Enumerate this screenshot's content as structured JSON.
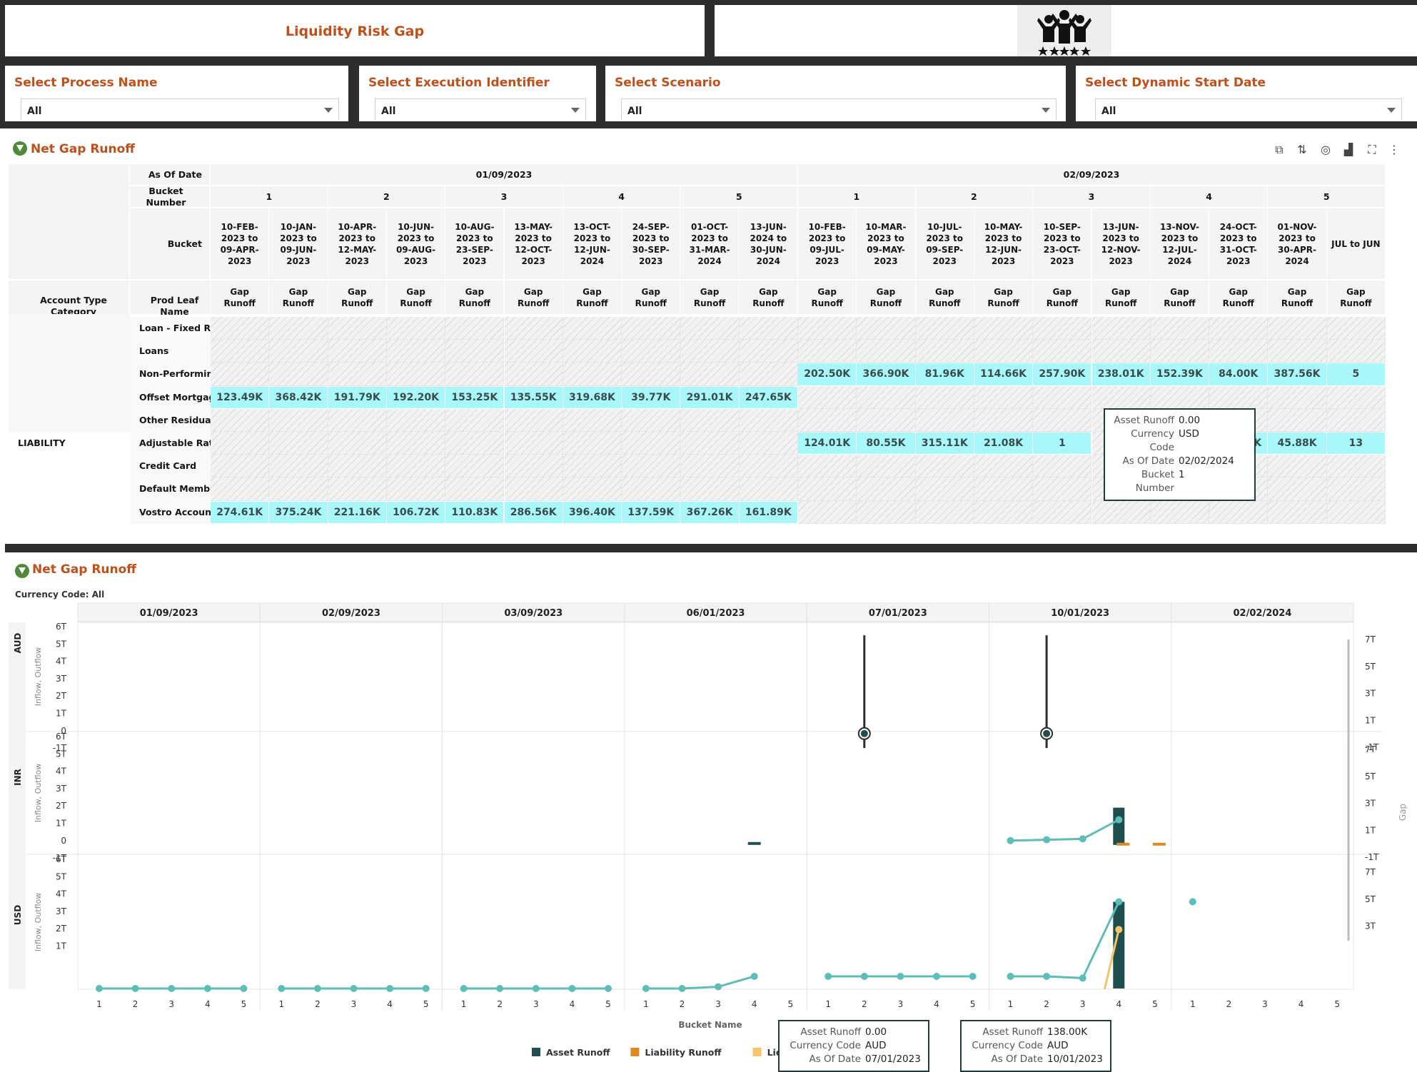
{
  "header": {
    "title": "Liquidity Risk Gap",
    "logo_icon": "people-celebration-icon"
  },
  "filters": [
    {
      "label": "Select Process Name",
      "value": "All"
    },
    {
      "label": "Select Execution Identifier",
      "value": "All"
    },
    {
      "label": "Select Scenario",
      "value": "All"
    },
    {
      "label": "Select Dynamic Start Date",
      "value": "All"
    }
  ],
  "table_section": {
    "title": "Net Gap Runoff",
    "toolbar_icons": [
      "pivot-icon",
      "sort-icon",
      "target-icon",
      "chart-type-icon",
      "fullscreen-icon",
      "more-icon"
    ],
    "row_headers": {
      "as_of_date": "As Of Date",
      "bucket_number": "Bucket Number",
      "bucket": "Bucket",
      "account_type_category": "Account Type Category",
      "prod_leaf_name": "Prod Leaf Name"
    },
    "dates": [
      {
        "label": "01/09/2023",
        "buckets": [
          "1",
          "2",
          "3",
          "4",
          "5"
        ]
      },
      {
        "label": "02/09/2023",
        "buckets": [
          "1",
          "2",
          "3",
          "4",
          "5"
        ]
      }
    ],
    "bucket_labels": [
      "10-FEB-2023 to 09-APR-2023",
      "10-JAN-2023 to 09-JUN-2023",
      "10-APR-2023 to 12-MAY-2023",
      "10-JUN-2023 to 09-AUG-2023",
      "10-AUG-2023 to 23-SEP-2023",
      "13-MAY-2023 to 12-OCT-2023",
      "13-OCT-2023 to 12-JUN-2024",
      "24-SEP-2023 to 30-SEP-2023",
      "01-OCT-2023 to 31-MAR-2024",
      "13-JUN-2024 to 30-JUN-2024",
      "10-FEB-2023 to 09-JUL-2023",
      "10-MAR-2023 to 09-MAY-2023",
      "10-JUL-2023 to 09-SEP-2023",
      "10-MAY-2023 to 12-JUN-2023",
      "10-SEP-2023 to 23-OCT-2023",
      "13-JUN-2023 to 12-NOV-2023",
      "13-NOV-2023 to 12-JUL-2024",
      "24-OCT-2023 to 31-OCT-2023",
      "01-NOV-2023 to 30-APR-2024",
      "JUL to JUN"
    ],
    "measure_label": "Gap Runoff",
    "rows": [
      {
        "category": "",
        "name": "Loan - Fixed Rate",
        "values": [
          "",
          "",
          "",
          "",
          "",
          "",
          "",
          "",
          "",
          "",
          "",
          "",
          "",
          "",
          "",
          "",
          "",
          "",
          "",
          ""
        ]
      },
      {
        "category": "",
        "name": "Loans",
        "values": [
          "",
          "",
          "",
          "",
          "",
          "",
          "",
          "",
          "",
          "",
          "",
          "",
          "",
          "",
          "",
          "",
          "",
          "",
          "",
          ""
        ]
      },
      {
        "category": "",
        "name": "Non-Performing Assets",
        "values": [
          "",
          "",
          "",
          "",
          "",
          "",
          "",
          "",
          "",
          "",
          "202.50K",
          "366.90K",
          "81.96K",
          "114.66K",
          "257.90K",
          "238.01K",
          "152.39K",
          "84.00K",
          "387.56K",
          "5"
        ]
      },
      {
        "category": "",
        "name": "Offset Mortgage",
        "values": [
          "123.49K",
          "368.42K",
          "191.79K",
          "192.20K",
          "153.25K",
          "135.55K",
          "319.68K",
          "39.77K",
          "291.01K",
          "247.65K",
          "",
          "",
          "",
          "",
          "",
          "",
          "",
          "",
          "",
          ""
        ]
      },
      {
        "category": "",
        "name": "Other Residual Products",
        "values": [
          "",
          "",
          "",
          "",
          "",
          "",
          "",
          "",
          "",
          "",
          "",
          "",
          "",
          "",
          "",
          "",
          "",
          "",
          "",
          ""
        ]
      },
      {
        "category": "LIABILITY",
        "name": "Adjustable Rate Mortgage",
        "values": [
          "",
          "",
          "",
          "",
          "",
          "",
          "",
          "",
          "",
          "",
          "124.01K",
          "80.55K",
          "315.11K",
          "21.08K",
          "1",
          "",
          "",
          "308.28K",
          "45.88K",
          "13"
        ]
      },
      {
        "category": "",
        "name": "Credit Card",
        "values": [
          "",
          "",
          "",
          "",
          "",
          "",
          "",
          "",
          "",
          "",
          "",
          "",
          "",
          "",
          "",
          "",
          "",
          "",
          "",
          ""
        ]
      },
      {
        "category": "",
        "name": "Default Member",
        "values": [
          "",
          "",
          "",
          "",
          "",
          "",
          "",
          "",
          "",
          "",
          "",
          "",
          "",
          "",
          "",
          "",
          "",
          "",
          "",
          ""
        ]
      },
      {
        "category": "",
        "name": "Vostro Account Class",
        "values": [
          "274.61K",
          "375.24K",
          "221.16K",
          "106.72K",
          "110.83K",
          "286.56K",
          "396.40K",
          "137.59K",
          "367.26K",
          "161.89K",
          "",
          "",
          "",
          "",
          "",
          "",
          "",
          "",
          "",
          ""
        ]
      }
    ],
    "tooltip": {
      "rows": [
        {
          "k": "Asset Runoff",
          "v": "0.00"
        },
        {
          "k": "Currency Code",
          "v": "USD"
        },
        {
          "k": "As Of Date",
          "v": "02/02/2024"
        },
        {
          "k": "Bucket Number",
          "v": "1"
        }
      ]
    }
  },
  "chart_section": {
    "title": "Net Gap Runoff",
    "filter_note": "Currency Code: All",
    "tooltips": [
      {
        "rows": [
          {
            "k": "Asset Runoff",
            "v": "0.00"
          },
          {
            "k": "Currency Code",
            "v": "AUD"
          },
          {
            "k": "As Of Date",
            "v": "07/01/2023"
          }
        ]
      },
      {
        "rows": [
          {
            "k": "Asset Runoff",
            "v": "138.00K"
          },
          {
            "k": "Currency Code",
            "v": "AUD"
          },
          {
            "k": "As Of Date",
            "v": "10/01/2023"
          }
        ]
      }
    ]
  },
  "chart_data": {
    "type": "line",
    "facet_columns": [
      "01/09/2023",
      "02/09/2023",
      "03/09/2023",
      "06/01/2023",
      "07/01/2023",
      "10/01/2023",
      "02/02/2024"
    ],
    "facet_rows": [
      "AUD",
      "INR",
      "USD"
    ],
    "x": [
      "1",
      "2",
      "3",
      "4",
      "5"
    ],
    "xlabel": "Bucket Name",
    "ylabel_left": "Inflow, Outflow",
    "ylabel_right": "Gap",
    "left_ticks": [
      "6T",
      "5T",
      "4T",
      "3T",
      "2T",
      "1T",
      "0",
      "-1T"
    ],
    "right_ticks": [
      "7T",
      "5T",
      "3T",
      "1T",
      "-1T"
    ],
    "usd_left_ticks": [
      "6T",
      "5T",
      "4T",
      "3T",
      "2T",
      "1T"
    ],
    "usd_right_ticks": [
      "7T",
      "5T",
      "3T"
    ],
    "legend": [
      {
        "name": "Asset Runoff",
        "color": "#1f4e4f"
      },
      {
        "name": "Liability Runoff",
        "color": "#e08a1e"
      },
      {
        "name": "Liquidity Gap",
        "color": "#f7c36b"
      }
    ],
    "series_colors": {
      "gap_line": "#5dbdb8",
      "asset_bar": "#1f4e4f",
      "liability": "#e08a1e",
      "liquidity": "#f7c36b"
    },
    "series": [
      {
        "facet_row": "USD",
        "facet_col": "01/09/2023",
        "gap": [
          1.0,
          1.0,
          1.0,
          1.0,
          1.0
        ]
      },
      {
        "facet_row": "USD",
        "facet_col": "02/09/2023",
        "gap": [
          1.0,
          1.0,
          1.0,
          1.0,
          1.0
        ]
      },
      {
        "facet_row": "USD",
        "facet_col": "03/09/2023",
        "gap": [
          1.0,
          1.0,
          1.0,
          1.0,
          1.0
        ]
      },
      {
        "facet_row": "USD",
        "facet_col": "06/01/2023",
        "gap": [
          1.0,
          1.0,
          1.1,
          1.7,
          null
        ]
      },
      {
        "facet_row": "USD",
        "facet_col": "07/01/2023",
        "gap": [
          1.7,
          1.7,
          1.7,
          1.7,
          1.7
        ]
      },
      {
        "facet_row": "USD",
        "facet_col": "10/01/2023",
        "gap": [
          1.7,
          1.7,
          1.6,
          6.0,
          null
        ],
        "liquidity": [
          null,
          null,
          null,
          4.4,
          null
        ],
        "asset": [
          null,
          null,
          null,
          6.0,
          null
        ]
      },
      {
        "facet_row": "USD",
        "facet_col": "02/02/2024",
        "gap": [
          6.0,
          null,
          null,
          null,
          null
        ]
      },
      {
        "facet_row": "INR",
        "facet_col": "10/01/2023",
        "gap": [
          0.0,
          0.05,
          0.1,
          1.2,
          null
        ],
        "asset": [
          null,
          null,
          null,
          1.9,
          null
        ],
        "liability": [
          null,
          null,
          null,
          0.0,
          0.0
        ]
      },
      {
        "facet_row": "INR",
        "facet_col": "06/01/2023",
        "asset": [
          null,
          null,
          null,
          0.0,
          null
        ]
      },
      {
        "facet_row": "AUD",
        "facet_col": "07/01/2023",
        "range": [
          -1.0,
          5.5
        ],
        "point": 0.0,
        "bucket": 2
      },
      {
        "facet_row": "AUD",
        "facet_col": "10/01/2023",
        "range": [
          -1.0,
          5.5
        ],
        "point": 0.0,
        "bucket": 2
      }
    ]
  }
}
